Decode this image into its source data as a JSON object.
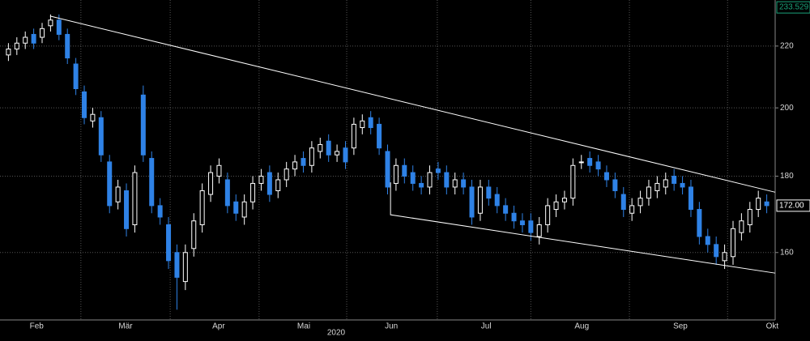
{
  "chart_data": {
    "type": "candlestick",
    "log_y": true,
    "grid": true,
    "up_color": "#ffffff",
    "down_color": "#2f82e6",
    "line_color": "#ffffff",
    "xlim": [
      -2,
      182
    ],
    "ylim": [
      144.2,
      236.2
    ],
    "yticks": [
      160,
      180,
      200,
      220
    ],
    "xticks": [
      {
        "value": 6.7,
        "label": "Feb"
      },
      {
        "value": 27.8,
        "label": "Mär"
      },
      {
        "value": 49.9,
        "label": "Apr"
      },
      {
        "value": 70.1,
        "label": "Mai"
      },
      {
        "value": 90.9,
        "label": "Jun"
      },
      {
        "value": 113.4,
        "label": "Jul"
      },
      {
        "value": 136.1,
        "label": "Aug"
      },
      {
        "value": 159.5,
        "label": "Sep"
      },
      {
        "value": 181.3,
        "label": "Okt"
      }
    ],
    "xgrid": [
      17.2,
      38.4,
      59.5,
      80.3,
      101.8,
      124,
      147.4,
      170.7
    ],
    "year_label": "2020",
    "price_labels": [
      {
        "value": 233.529,
        "color": "#1aa37a"
      },
      {
        "value": 172,
        "label": "172.00",
        "color": "#ffffff"
      }
    ],
    "trendlines": [
      {
        "x": [
          9.9,
          182
        ],
        "y": [
          230.4,
          175.6
        ]
      },
      {
        "x": [
          90.7,
          90.7,
          182
        ],
        "y": [
          178.3,
          169.6,
          155
        ]
      }
    ],
    "candles": {
      "x": [
        0,
        2,
        4,
        6,
        8,
        10,
        12,
        14,
        16,
        18,
        20,
        22,
        24,
        26,
        28,
        30,
        32,
        34,
        36,
        38,
        40,
        42,
        44,
        46,
        48,
        50,
        52,
        54,
        56,
        58,
        60,
        62,
        64,
        66,
        68,
        70,
        72,
        74,
        76,
        78,
        80,
        82,
        84,
        86,
        88,
        90,
        92,
        94,
        96,
        98,
        100,
        102,
        104,
        106,
        108,
        110,
        112,
        114,
        116,
        118,
        120,
        122,
        124,
        126,
        128,
        130,
        132,
        134,
        136,
        138,
        140,
        142,
        144,
        146,
        148,
        150,
        152,
        154,
        156,
        158,
        160,
        162,
        164,
        166,
        168,
        170,
        172,
        174,
        176,
        178,
        180
      ],
      "open": [
        217,
        219,
        221,
        224,
        223,
        227,
        229,
        224,
        214,
        205,
        196,
        197,
        184,
        173,
        176,
        167,
        204,
        185,
        172,
        167,
        160,
        153,
        161,
        167,
        175,
        180,
        179,
        173,
        169,
        173,
        178,
        181,
        176,
        179,
        182,
        185,
        183,
        187,
        190,
        186,
        188,
        188,
        194,
        197,
        195,
        187,
        178,
        183,
        181,
        178,
        177,
        182,
        181,
        177,
        179,
        177,
        170,
        177,
        175,
        172,
        170,
        168,
        168,
        164,
        167,
        171,
        173,
        174,
        184,
        185,
        184,
        181,
        179,
        175,
        170,
        172,
        174,
        176,
        177,
        180,
        178,
        177,
        171,
        164,
        162,
        158,
        159,
        165,
        167,
        171,
        173
      ],
      "high": [
        221,
        223,
        225,
        226,
        228,
        231,
        231,
        226,
        216,
        207,
        200,
        199,
        186,
        179,
        178,
        183,
        207,
        187,
        174,
        169,
        162,
        162,
        170,
        178,
        183,
        185,
        181,
        175,
        175,
        180,
        182,
        183,
        181,
        184,
        186,
        187,
        190,
        191,
        192,
        189,
        190,
        197,
        198,
        199,
        197,
        189,
        185,
        185,
        183,
        180,
        183,
        184,
        183,
        181,
        181,
        179,
        179,
        179,
        177,
        174,
        172,
        170,
        170,
        169,
        174,
        175,
        176,
        185,
        186,
        187,
        186,
        183,
        181,
        177,
        174,
        176,
        179,
        180,
        181,
        182,
        180,
        179,
        173,
        166,
        164,
        162,
        168,
        170,
        173,
        176,
        175
      ],
      "low": [
        215,
        217,
        219,
        219,
        221,
        225,
        222,
        214,
        204,
        195,
        194,
        184,
        170,
        171,
        164,
        165,
        184,
        170,
        167,
        156,
        146.5,
        151,
        159,
        165,
        173,
        178,
        170,
        168,
        167,
        171,
        176,
        173,
        174,
        177,
        180,
        181,
        181,
        185,
        184,
        184,
        182,
        186,
        192,
        192,
        186,
        175,
        176,
        178,
        176,
        175,
        175,
        179,
        175,
        175,
        175,
        167,
        168,
        172,
        170,
        168,
        166,
        165,
        163,
        162,
        165,
        169,
        171,
        172,
        182,
        181,
        180,
        177,
        174,
        169,
        168,
        170,
        172,
        174,
        175,
        176,
        175,
        169,
        162,
        160,
        157,
        156,
        157,
        163,
        165,
        169,
        170
      ],
      "close": [
        219,
        221,
        223,
        221,
        226,
        229,
        224,
        216,
        206,
        197,
        198,
        186,
        172,
        177,
        166,
        181,
        186,
        172,
        169,
        158,
        154,
        160,
        168,
        176,
        181,
        183,
        172,
        170,
        173,
        178,
        180,
        175,
        179,
        182,
        184,
        183,
        188,
        189,
        186,
        187,
        184,
        195,
        196,
        194,
        188,
        177,
        183,
        180,
        178,
        177,
        181,
        181,
        177,
        179,
        177,
        169,
        177,
        174,
        172,
        170,
        168,
        167,
        165,
        167,
        172,
        173,
        174,
        183,
        184,
        183,
        182,
        179,
        176,
        171,
        172,
        174,
        177,
        178,
        179,
        178,
        177,
        171,
        164,
        162,
        159,
        160,
        166,
        168,
        171,
        174,
        172
      ]
    }
  }
}
